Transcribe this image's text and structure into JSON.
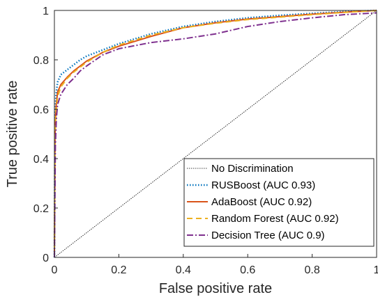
{
  "chart_data": {
    "type": "line",
    "title": "",
    "xlabel": "False positive rate",
    "ylabel": "True positive rate",
    "xlim": [
      0,
      1
    ],
    "ylim": [
      0,
      1
    ],
    "x_ticks": [
      "0",
      "0.2",
      "0.4",
      "0.6",
      "0.8",
      "1"
    ],
    "y_ticks": [
      "0",
      "0.2",
      "0.4",
      "0.6",
      "0.8",
      "1"
    ],
    "grid": false,
    "legend_position": "bottom-right",
    "series": [
      {
        "name": "No Discrimination",
        "color": "#000000",
        "style": "dotted-thin",
        "points": [
          [
            0,
            0
          ],
          [
            1,
            1
          ]
        ]
      },
      {
        "name": "RUSBoost (AUC 0.93)",
        "color": "#0072BD",
        "style": "dotted",
        "points": [
          [
            0,
            0
          ],
          [
            0.002,
            0.55
          ],
          [
            0.005,
            0.66
          ],
          [
            0.01,
            0.71
          ],
          [
            0.02,
            0.74
          ],
          [
            0.04,
            0.76
          ],
          [
            0.06,
            0.78
          ],
          [
            0.08,
            0.8
          ],
          [
            0.1,
            0.815
          ],
          [
            0.15,
            0.84
          ],
          [
            0.2,
            0.865
          ],
          [
            0.3,
            0.905
          ],
          [
            0.4,
            0.935
          ],
          [
            0.5,
            0.955
          ],
          [
            0.6,
            0.97
          ],
          [
            0.7,
            0.98
          ],
          [
            0.8,
            0.988
          ],
          [
            0.9,
            0.995
          ],
          [
            1,
            1
          ]
        ]
      },
      {
        "name": "AdaBoost (AUC 0.92)",
        "color": "#D95319",
        "style": "solid",
        "points": [
          [
            0,
            0
          ],
          [
            0.002,
            0.5
          ],
          [
            0.005,
            0.61
          ],
          [
            0.01,
            0.67
          ],
          [
            0.02,
            0.7
          ],
          [
            0.04,
            0.73
          ],
          [
            0.06,
            0.755
          ],
          [
            0.08,
            0.775
          ],
          [
            0.1,
            0.795
          ],
          [
            0.15,
            0.83
          ],
          [
            0.2,
            0.855
          ],
          [
            0.3,
            0.895
          ],
          [
            0.4,
            0.93
          ],
          [
            0.5,
            0.95
          ],
          [
            0.6,
            0.965
          ],
          [
            0.7,
            0.975
          ],
          [
            0.8,
            0.985
          ],
          [
            0.9,
            0.993
          ],
          [
            1,
            1
          ]
        ]
      },
      {
        "name": "Random Forest (AUC 0.92)",
        "color": "#EDB120",
        "style": "dashed",
        "points": [
          [
            0,
            0
          ],
          [
            0.002,
            0.48
          ],
          [
            0.005,
            0.59
          ],
          [
            0.01,
            0.65
          ],
          [
            0.02,
            0.69
          ],
          [
            0.04,
            0.725
          ],
          [
            0.06,
            0.75
          ],
          [
            0.08,
            0.77
          ],
          [
            0.1,
            0.79
          ],
          [
            0.15,
            0.83
          ],
          [
            0.2,
            0.86
          ],
          [
            0.3,
            0.9
          ],
          [
            0.4,
            0.93
          ],
          [
            0.5,
            0.948
          ],
          [
            0.6,
            0.963
          ],
          [
            0.7,
            0.973
          ],
          [
            0.8,
            0.983
          ],
          [
            0.9,
            0.992
          ],
          [
            1,
            1
          ]
        ]
      },
      {
        "name": "Decision Tree (AUC 0.9)",
        "color": "#7E2F8E",
        "style": "dashdot",
        "points": [
          [
            0,
            0
          ],
          [
            0.003,
            0.45
          ],
          [
            0.006,
            0.56
          ],
          [
            0.01,
            0.62
          ],
          [
            0.02,
            0.66
          ],
          [
            0.04,
            0.7
          ],
          [
            0.06,
            0.725
          ],
          [
            0.08,
            0.755
          ],
          [
            0.1,
            0.775
          ],
          [
            0.15,
            0.82
          ],
          [
            0.2,
            0.845
          ],
          [
            0.3,
            0.87
          ],
          [
            0.4,
            0.885
          ],
          [
            0.5,
            0.905
          ],
          [
            0.55,
            0.92
          ],
          [
            0.6,
            0.935
          ],
          [
            0.7,
            0.955
          ],
          [
            0.8,
            0.97
          ],
          [
            0.9,
            0.983
          ],
          [
            1,
            0.99
          ]
        ]
      }
    ]
  }
}
